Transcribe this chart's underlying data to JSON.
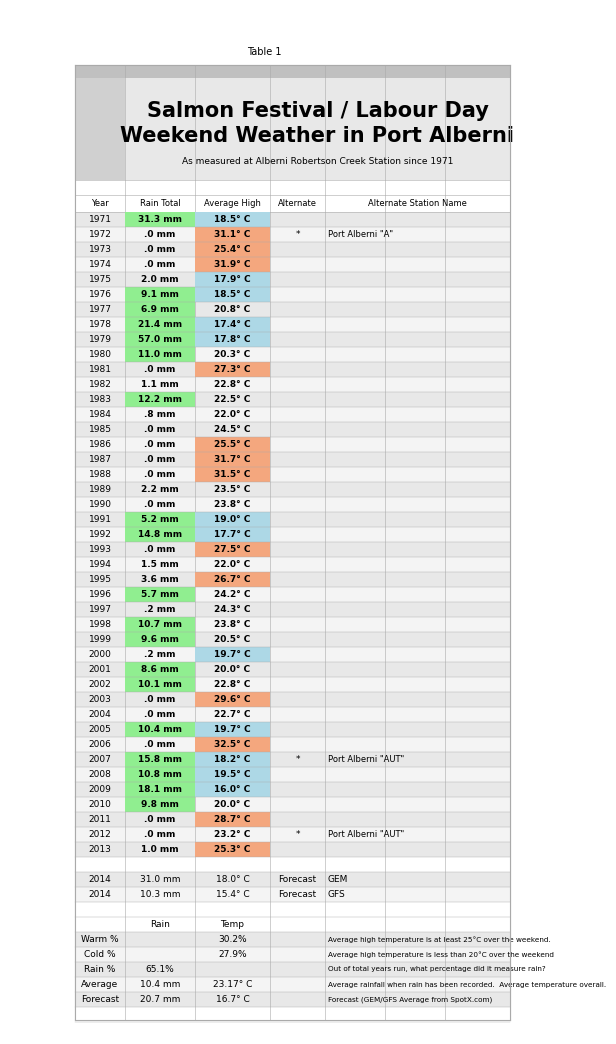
{
  "title_line1": "Salmon Festival / Labour Day",
  "title_line2": "Weekend Weather in Port Alberni",
  "subtitle": "As measured at Alberni Robertson Creek Station since 1971",
  "table1_label": "Table 1",
  "col_headers": [
    "Year",
    "Rain Total",
    "Average High",
    "Alternate",
    "Alternate Station Name"
  ],
  "rows": [
    {
      "year": "1971",
      "rain": "31.3 mm",
      "temp": "18.5° C",
      "alt": "",
      "alt_name": "",
      "rain_color": "#90EE90",
      "temp_color": "#ADD8E6"
    },
    {
      "year": "1972",
      "rain": ".0 mm",
      "temp": "31.1° C",
      "alt": "*",
      "alt_name": "Port Alberni \"A\"",
      "rain_color": null,
      "temp_color": "#F4A77E"
    },
    {
      "year": "1973",
      "rain": ".0 mm",
      "temp": "25.4° C",
      "alt": "",
      "alt_name": "",
      "rain_color": null,
      "temp_color": "#F4A77E"
    },
    {
      "year": "1974",
      "rain": ".0 mm",
      "temp": "31.9° C",
      "alt": "",
      "alt_name": "",
      "rain_color": null,
      "temp_color": "#F4A77E"
    },
    {
      "year": "1975",
      "rain": "2.0 mm",
      "temp": "17.9° C",
      "alt": "",
      "alt_name": "",
      "rain_color": null,
      "temp_color": "#ADD8E6"
    },
    {
      "year": "1976",
      "rain": "9.1 mm",
      "temp": "18.5° C",
      "alt": "",
      "alt_name": "",
      "rain_color": "#90EE90",
      "temp_color": "#ADD8E6"
    },
    {
      "year": "1977",
      "rain": "6.9 mm",
      "temp": "20.8° C",
      "alt": "",
      "alt_name": "",
      "rain_color": "#90EE90",
      "temp_color": null
    },
    {
      "year": "1978",
      "rain": "21.4 mm",
      "temp": "17.4° C",
      "alt": "",
      "alt_name": "",
      "rain_color": "#90EE90",
      "temp_color": "#ADD8E6"
    },
    {
      "year": "1979",
      "rain": "57.0 mm",
      "temp": "17.8° C",
      "alt": "",
      "alt_name": "",
      "rain_color": "#90EE90",
      "temp_color": "#ADD8E6"
    },
    {
      "year": "1980",
      "rain": "11.0 mm",
      "temp": "20.3° C",
      "alt": "",
      "alt_name": "",
      "rain_color": "#90EE90",
      "temp_color": null
    },
    {
      "year": "1981",
      "rain": ".0 mm",
      "temp": "27.3° C",
      "alt": "",
      "alt_name": "",
      "rain_color": null,
      "temp_color": "#F4A77E"
    },
    {
      "year": "1982",
      "rain": "1.1 mm",
      "temp": "22.8° C",
      "alt": "",
      "alt_name": "",
      "rain_color": null,
      "temp_color": null
    },
    {
      "year": "1983",
      "rain": "12.2 mm",
      "temp": "22.5° C",
      "alt": "",
      "alt_name": "",
      "rain_color": "#90EE90",
      "temp_color": null
    },
    {
      "year": "1984",
      "rain": ".8 mm",
      "temp": "22.0° C",
      "alt": "",
      "alt_name": "",
      "rain_color": null,
      "temp_color": null
    },
    {
      "year": "1985",
      "rain": ".0 mm",
      "temp": "24.5° C",
      "alt": "",
      "alt_name": "",
      "rain_color": null,
      "temp_color": null
    },
    {
      "year": "1986",
      "rain": ".0 mm",
      "temp": "25.5° C",
      "alt": "",
      "alt_name": "",
      "rain_color": null,
      "temp_color": "#F4A77E"
    },
    {
      "year": "1987",
      "rain": ".0 mm",
      "temp": "31.7° C",
      "alt": "",
      "alt_name": "",
      "rain_color": null,
      "temp_color": "#F4A77E"
    },
    {
      "year": "1988",
      "rain": ".0 mm",
      "temp": "31.5° C",
      "alt": "",
      "alt_name": "",
      "rain_color": null,
      "temp_color": "#F4A77E"
    },
    {
      "year": "1989",
      "rain": "2.2 mm",
      "temp": "23.5° C",
      "alt": "",
      "alt_name": "",
      "rain_color": null,
      "temp_color": null
    },
    {
      "year": "1990",
      "rain": ".0 mm",
      "temp": "23.8° C",
      "alt": "",
      "alt_name": "",
      "rain_color": null,
      "temp_color": null
    },
    {
      "year": "1991",
      "rain": "5.2 mm",
      "temp": "19.0° C",
      "alt": "",
      "alt_name": "",
      "rain_color": "#90EE90",
      "temp_color": "#ADD8E6"
    },
    {
      "year": "1992",
      "rain": "14.8 mm",
      "temp": "17.7° C",
      "alt": "",
      "alt_name": "",
      "rain_color": "#90EE90",
      "temp_color": "#ADD8E6"
    },
    {
      "year": "1993",
      "rain": ".0 mm",
      "temp": "27.5° C",
      "alt": "",
      "alt_name": "",
      "rain_color": null,
      "temp_color": "#F4A77E"
    },
    {
      "year": "1994",
      "rain": "1.5 mm",
      "temp": "22.0° C",
      "alt": "",
      "alt_name": "",
      "rain_color": null,
      "temp_color": null
    },
    {
      "year": "1995",
      "rain": "3.6 mm",
      "temp": "26.7° C",
      "alt": "",
      "alt_name": "",
      "rain_color": null,
      "temp_color": "#F4A77E"
    },
    {
      "year": "1996",
      "rain": "5.7 mm",
      "temp": "24.2° C",
      "alt": "",
      "alt_name": "",
      "rain_color": "#90EE90",
      "temp_color": null
    },
    {
      "year": "1997",
      "rain": ".2 mm",
      "temp": "24.3° C",
      "alt": "",
      "alt_name": "",
      "rain_color": null,
      "temp_color": null
    },
    {
      "year": "1998",
      "rain": "10.7 mm",
      "temp": "23.8° C",
      "alt": "",
      "alt_name": "",
      "rain_color": "#90EE90",
      "temp_color": null
    },
    {
      "year": "1999",
      "rain": "9.6 mm",
      "temp": "20.5° C",
      "alt": "",
      "alt_name": "",
      "rain_color": "#90EE90",
      "temp_color": null
    },
    {
      "year": "2000",
      "rain": ".2 mm",
      "temp": "19.7° C",
      "alt": "",
      "alt_name": "",
      "rain_color": null,
      "temp_color": "#ADD8E6"
    },
    {
      "year": "2001",
      "rain": "8.6 mm",
      "temp": "20.0° C",
      "alt": "",
      "alt_name": "",
      "rain_color": "#90EE90",
      "temp_color": null
    },
    {
      "year": "2002",
      "rain": "10.1 mm",
      "temp": "22.8° C",
      "alt": "",
      "alt_name": "",
      "rain_color": "#90EE90",
      "temp_color": null
    },
    {
      "year": "2003",
      "rain": ".0 mm",
      "temp": "29.6° C",
      "alt": "",
      "alt_name": "",
      "rain_color": null,
      "temp_color": "#F4A77E"
    },
    {
      "year": "2004",
      "rain": ".0 mm",
      "temp": "22.7° C",
      "alt": "",
      "alt_name": "",
      "rain_color": null,
      "temp_color": null
    },
    {
      "year": "2005",
      "rain": "10.4 mm",
      "temp": "19.7° C",
      "alt": "",
      "alt_name": "",
      "rain_color": "#90EE90",
      "temp_color": "#ADD8E6"
    },
    {
      "year": "2006",
      "rain": ".0 mm",
      "temp": "32.5° C",
      "alt": "",
      "alt_name": "",
      "rain_color": null,
      "temp_color": "#F4A77E"
    },
    {
      "year": "2007",
      "rain": "15.8 mm",
      "temp": "18.2° C",
      "alt": "*",
      "alt_name": "Port Alberni \"AUT\"",
      "rain_color": "#90EE90",
      "temp_color": "#ADD8E6"
    },
    {
      "year": "2008",
      "rain": "10.8 mm",
      "temp": "19.5° C",
      "alt": "",
      "alt_name": "",
      "rain_color": "#90EE90",
      "temp_color": "#ADD8E6"
    },
    {
      "year": "2009",
      "rain": "18.1 mm",
      "temp": "16.0° C",
      "alt": "",
      "alt_name": "",
      "rain_color": "#90EE90",
      "temp_color": "#ADD8E6"
    },
    {
      "year": "2010",
      "rain": "9.8 mm",
      "temp": "20.0° C",
      "alt": "",
      "alt_name": "",
      "rain_color": "#90EE90",
      "temp_color": null
    },
    {
      "year": "2011",
      "rain": ".0 mm",
      "temp": "28.7° C",
      "alt": "",
      "alt_name": "",
      "rain_color": null,
      "temp_color": "#F4A77E"
    },
    {
      "year": "2012",
      "rain": ".0 mm",
      "temp": "23.2° C",
      "alt": "*",
      "alt_name": "Port Alberni \"AUT\"",
      "rain_color": null,
      "temp_color": null
    },
    {
      "year": "2013",
      "rain": "1.0 mm",
      "temp": "25.3° C",
      "alt": "",
      "alt_name": "",
      "rain_color": null,
      "temp_color": "#F4A77E"
    }
  ],
  "forecast_rows": [
    {
      "year": "2014",
      "rain": "31.0 mm",
      "temp": "18.0° C",
      "alt": "Forecast",
      "alt_name": "GEM"
    },
    {
      "year": "2014",
      "rain": "10.3 mm",
      "temp": "15.4° C",
      "alt": "Forecast",
      "alt_name": "GFS"
    }
  ],
  "summary_rows": [
    {
      "label": "Warm %",
      "rain": "",
      "temp": "30.2%",
      "desc": "Average high temperature is at least 25°C over the weekend."
    },
    {
      "label": "Cold %",
      "rain": "",
      "temp": "27.9%",
      "desc": "Average high temperature is less than 20°C over the weekend"
    },
    {
      "label": "Rain %",
      "rain": "65.1%",
      "temp": "",
      "desc": "Out of total years run, what percentage did it measure rain?"
    },
    {
      "label": "Average",
      "rain": "10.4 mm",
      "temp": "23.17° C",
      "desc": "Average rainfall when rain has been recorded.  Average temperature overall."
    },
    {
      "label": "Forecast",
      "rain": "20.7 mm",
      "temp": "16.7° C",
      "desc": "Forecast (GEM/GFS Average from SpotX.com)"
    }
  ],
  "header_bg": "#c0c0c0",
  "title_bg": "#e8e8e8",
  "left_col_bg": "#d0d0d0",
  "even_row_bg": "#e8e8e8",
  "odd_row_bg": "#f4f4f4",
  "border_color": "#aaaaaa",
  "col_bounds": [
    65,
    115,
    185,
    260,
    315,
    375,
    435,
    500
  ]
}
